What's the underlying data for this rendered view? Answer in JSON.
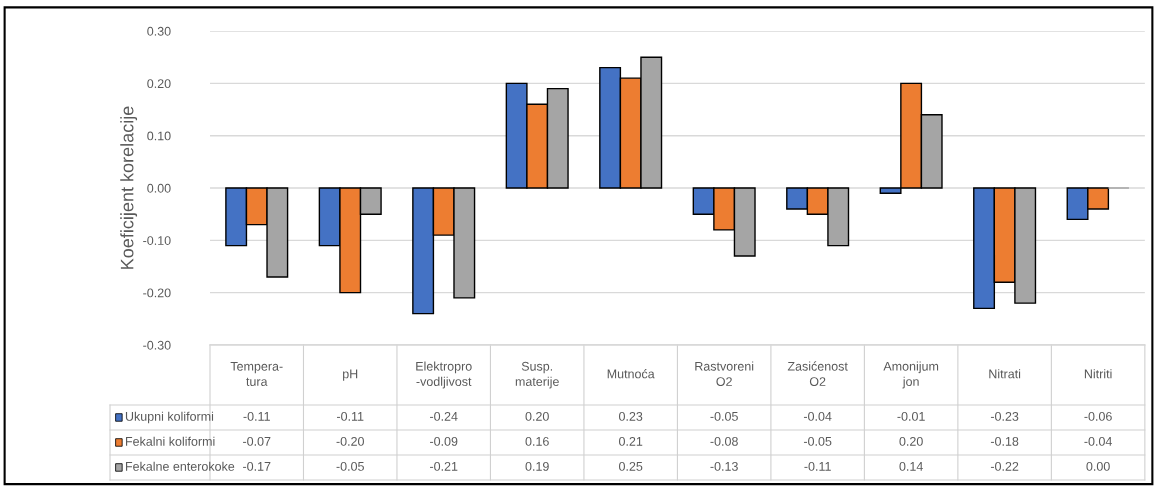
{
  "chart_data": {
    "type": "bar",
    "ylabel": "Koeficijent korelacije",
    "categories": [
      "Tempera-\ntura",
      "pH",
      "Elektropro\n-vodljivost",
      "Susp.\nmaterije",
      "Mutnoća",
      "Rastvoreni\nO2",
      "Zasićenost\nO2",
      "Amonijum\njon",
      "Nitrati",
      "Nitriti"
    ],
    "series": [
      {
        "name": "Ukupni koliformi",
        "color": "#4472c4",
        "values": [
          -0.11,
          -0.11,
          -0.24,
          0.2,
          0.23,
          -0.05,
          -0.04,
          -0.01,
          -0.23,
          -0.06
        ],
        "value_labels": [
          "-0.11",
          "-0.11",
          "-0.24",
          "0.20",
          "0.23",
          "-0.05",
          "-0.04",
          "-0.01",
          "-0.23",
          "-0.06"
        ]
      },
      {
        "name": "Fekalni koliformi",
        "color": "#ed7d31",
        "values": [
          -0.07,
          -0.2,
          -0.09,
          0.16,
          0.21,
          -0.08,
          -0.05,
          0.2,
          -0.18,
          -0.04
        ],
        "value_labels": [
          "-0.07",
          "-0.20",
          "-0.09",
          "0.16",
          "0.21",
          "-0.08",
          "-0.05",
          "0.20",
          "-0.18",
          "-0.04"
        ]
      },
      {
        "name": "Fekalne enterokoke",
        "color": "#a5a5a5",
        "values": [
          -0.17,
          -0.05,
          -0.21,
          0.19,
          0.25,
          -0.13,
          -0.11,
          0.14,
          -0.22,
          0.0
        ],
        "value_labels": [
          "-0.17",
          "-0.05",
          "-0.21",
          "0.19",
          "0.25",
          "-0.13",
          "-0.11",
          "0.14",
          "-0.22",
          "0.00"
        ]
      }
    ],
    "ylim": [
      -0.3,
      0.3
    ],
    "yticks": [
      {
        "value": -0.3,
        "label": "-0.30"
      },
      {
        "value": -0.2,
        "label": "-0.20"
      },
      {
        "value": -0.1,
        "label": "-0.10"
      },
      {
        "value": 0,
        "label": "0.00"
      },
      {
        "value": 0.1,
        "label": "0.10"
      },
      {
        "value": 0.2,
        "label": "0.20"
      },
      {
        "value": 0.3,
        "label": "0.30"
      }
    ],
    "grid": "y",
    "legend": "bottom"
  }
}
